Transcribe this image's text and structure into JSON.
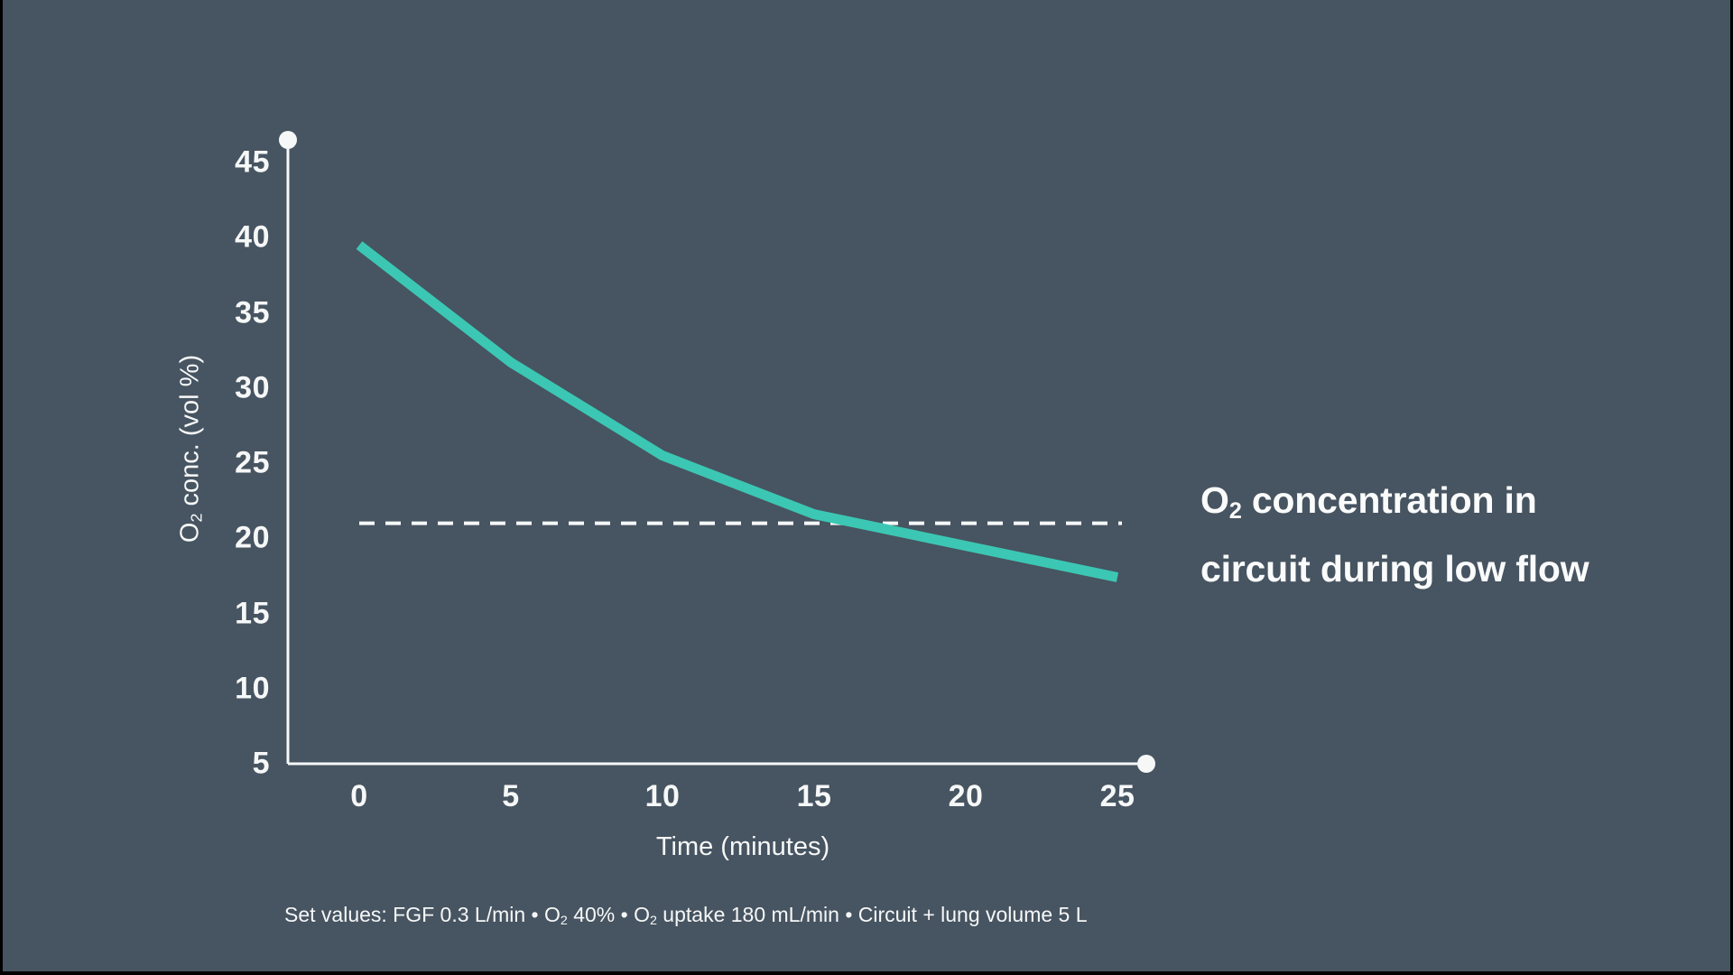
{
  "colors": {
    "background": "#475461",
    "axis": "#F6F8F8",
    "text": "#F6F8F8",
    "title_text": "#FAFBFB",
    "dashed": "#F6F8F8",
    "line": "#3BC7B3",
    "frame": "#000000"
  },
  "title": {
    "part1": "O",
    "sub": "2",
    "part2": " concentration in",
    "line2": "circuit during low flow"
  },
  "axis": {
    "ylabel": {
      "part1": "O",
      "sub": "2",
      "part2": " conc. (vol %)"
    },
    "xlabel": "Time (minutes)"
  },
  "caption": {
    "part1": "Set values: FGF 0.3 L/min • O",
    "sub1": "2",
    "part2": " 40% • O",
    "sub2": "2",
    "part3": " uptake 180 mL/min • Circuit + lung volume 5 L"
  },
  "chart_data": {
    "type": "line",
    "title": "O2 concentration in circuit during low flow",
    "xlabel": "Time (minutes)",
    "ylabel": "O2 conc. (vol %)",
    "x": [
      0,
      5,
      10,
      15,
      20,
      25
    ],
    "series": [
      {
        "name": "O2 concentration in circuit",
        "values": [
          39.5,
          31.7,
          25.5,
          21.6,
          19.5,
          17.4
        ]
      }
    ],
    "reference_line": {
      "value": 21,
      "style": "dashed"
    },
    "x_ticks": [
      0,
      5,
      10,
      15,
      20,
      25
    ],
    "y_ticks": [
      45,
      40,
      35,
      30,
      25,
      20,
      15,
      10,
      5
    ],
    "xlim": [
      0,
      25
    ],
    "ylim": [
      5,
      46
    ],
    "grid": false,
    "legend": "none",
    "annotation": "Set values: FGF 0.3 L/min • O2 40% • O2 uptake 180 mL/min • Circuit + lung volume 5 L"
  }
}
